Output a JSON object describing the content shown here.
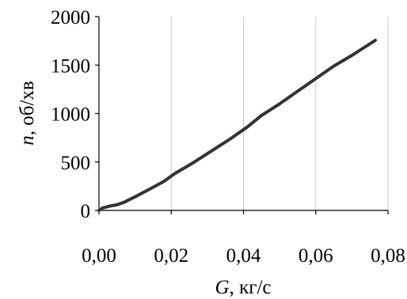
{
  "chart_data": {
    "type": "line",
    "xlabel": {
      "var": "G",
      "rest": ", кг/с"
    },
    "ylabel": {
      "var": "n",
      "rest": ", об/хв"
    },
    "xlim": [
      0,
      0.08
    ],
    "ylim": [
      0,
      2000
    ],
    "x_ticks": [
      0,
      0.02,
      0.04,
      0.06,
      0.08
    ],
    "y_ticks": [
      0,
      500,
      1000,
      1500,
      2000
    ],
    "x_tick_labels": [
      "0,00",
      "0,02",
      "0,04",
      "0,06",
      "0,08"
    ],
    "y_tick_labels": [
      "0",
      "500",
      "1000",
      "1500",
      "2000"
    ],
    "grid": {
      "vertical": true,
      "horizontal": false
    },
    "series": [
      {
        "color": "#333333",
        "points": [
          [
            0.0,
            0
          ],
          [
            0.001,
            25
          ],
          [
            0.003,
            45
          ],
          [
            0.005,
            58
          ],
          [
            0.007,
            85
          ],
          [
            0.01,
            140
          ],
          [
            0.014,
            220
          ],
          [
            0.018,
            300
          ],
          [
            0.021,
            380
          ],
          [
            0.026,
            490
          ],
          [
            0.031,
            610
          ],
          [
            0.036,
            730
          ],
          [
            0.041,
            860
          ],
          [
            0.045,
            980
          ],
          [
            0.05,
            1100
          ],
          [
            0.055,
            1230
          ],
          [
            0.06,
            1360
          ],
          [
            0.065,
            1490
          ],
          [
            0.07,
            1600
          ],
          [
            0.0765,
            1755
          ]
        ]
      }
    ]
  }
}
